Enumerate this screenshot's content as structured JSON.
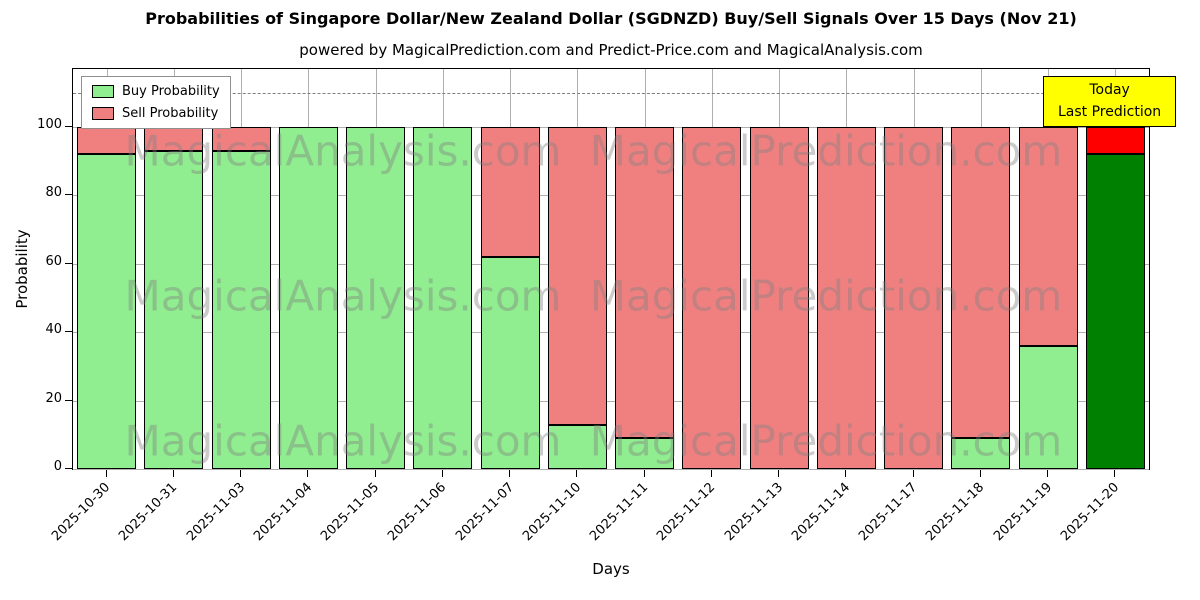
{
  "title": "Probabilities of Singapore Dollar/New Zealand Dollar (SGDNZD) Buy/Sell Signals Over 15 Days (Nov 21)",
  "subtitle": "powered by MagicalPrediction.com and Predict-Price.com and MagicalAnalysis.com",
  "legend": {
    "buy": "Buy Probability",
    "sell": "Sell Probability"
  },
  "today_box": {
    "line1": "Today",
    "line2": "Last Prediction"
  },
  "axes": {
    "xlabel": "Days",
    "ylabel": "Probability",
    "yticks": [
      0,
      20,
      40,
      60,
      80,
      100
    ]
  },
  "colors": {
    "buy": "#90ee90",
    "sell": "#f08080",
    "today_buy": "#008000",
    "today_sell": "#ff0000",
    "bar_edge": "#000000",
    "grid": "#b0b0b0",
    "dashed_line": "#7f7f7f",
    "today_box_bg": "#ffff00",
    "watermark": "#808080"
  },
  "watermarks": {
    "left": "MagicalAnalysis.com",
    "right": "MagicalPrediction.com"
  },
  "chart_data": {
    "type": "bar",
    "stacked": true,
    "title": "Probabilities of Singapore Dollar/New Zealand Dollar (SGDNZD) Buy/Sell Signals Over 15 Days (Nov 21)",
    "xlabel": "Days",
    "ylabel": "Probability",
    "categories": [
      "2025-10-30",
      "2025-10-31",
      "2025-11-03",
      "2025-11-04",
      "2025-11-05",
      "2025-11-06",
      "2025-11-07",
      "2025-11-10",
      "2025-11-11",
      "2025-11-12",
      "2025-11-13",
      "2025-11-14",
      "2025-11-17",
      "2025-11-18",
      "2025-11-19",
      "2025-11-20"
    ],
    "series": [
      {
        "name": "Buy Probability",
        "values": [
          92,
          93,
          93,
          100,
          100,
          100,
          62,
          13,
          9,
          0,
          0,
          0,
          0,
          9,
          36,
          92
        ]
      },
      {
        "name": "Sell Probability",
        "values": [
          8,
          7,
          7,
          0,
          0,
          0,
          38,
          87,
          91,
          100,
          100,
          100,
          100,
          91,
          64,
          8
        ]
      }
    ],
    "ylim": [
      0,
      117
    ],
    "dashed_line_y": 110,
    "grid": true,
    "legend_position": "upper left",
    "today_bar_index": 15
  }
}
